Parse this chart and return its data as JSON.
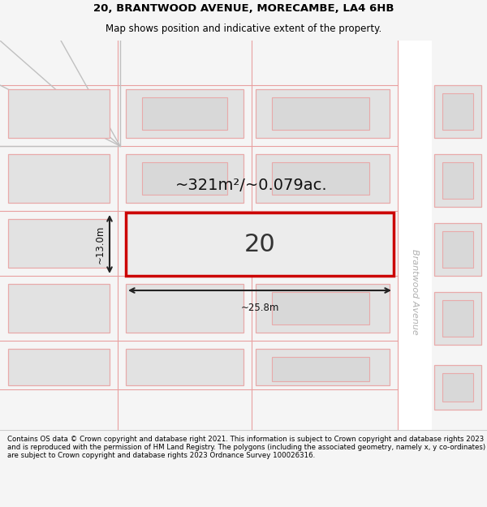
{
  "title_line1": "20, BRANTWOOD AVENUE, MORECAMBE, LA4 6HB",
  "title_line2": "Map shows position and indicative extent of the property.",
  "footer_text": "Contains OS data © Crown copyright and database right 2021. This information is subject to Crown copyright and database rights 2023 and is reproduced with the permission of HM Land Registry. The polygons (including the associated geometry, namely x, y co-ordinates) are subject to Crown copyright and database rights 2023 Ordnance Survey 100026316.",
  "area_text": "~321m²/~0.079ac.",
  "width_text": "~25.8m",
  "height_text": "~13.0m",
  "plot_number": "20",
  "street_label": "Brantwood Avenue",
  "bg_color": "#f5f5f5",
  "highlight_fill": "#ececec",
  "highlight_edge": "#cc0000",
  "neighbor_fill": "#e2e2e2",
  "neighbor_edge": "#e8aaaa",
  "road_color": "#ffffff",
  "dim_color": "#222222",
  "text_color": "#111111",
  "street_color": "#b0b0b0",
  "diag_color": "#c0c0c0",
  "bound_color": "#e8a0a0",
  "footer_bg": "#f5f5f5",
  "title_fontsize": 9.5,
  "subtitle_fontsize": 8.5,
  "area_fontsize": 14,
  "plot_num_fontsize": 22,
  "dim_fontsize": 8.5,
  "street_fontsize": 8,
  "footer_fontsize": 6.2
}
